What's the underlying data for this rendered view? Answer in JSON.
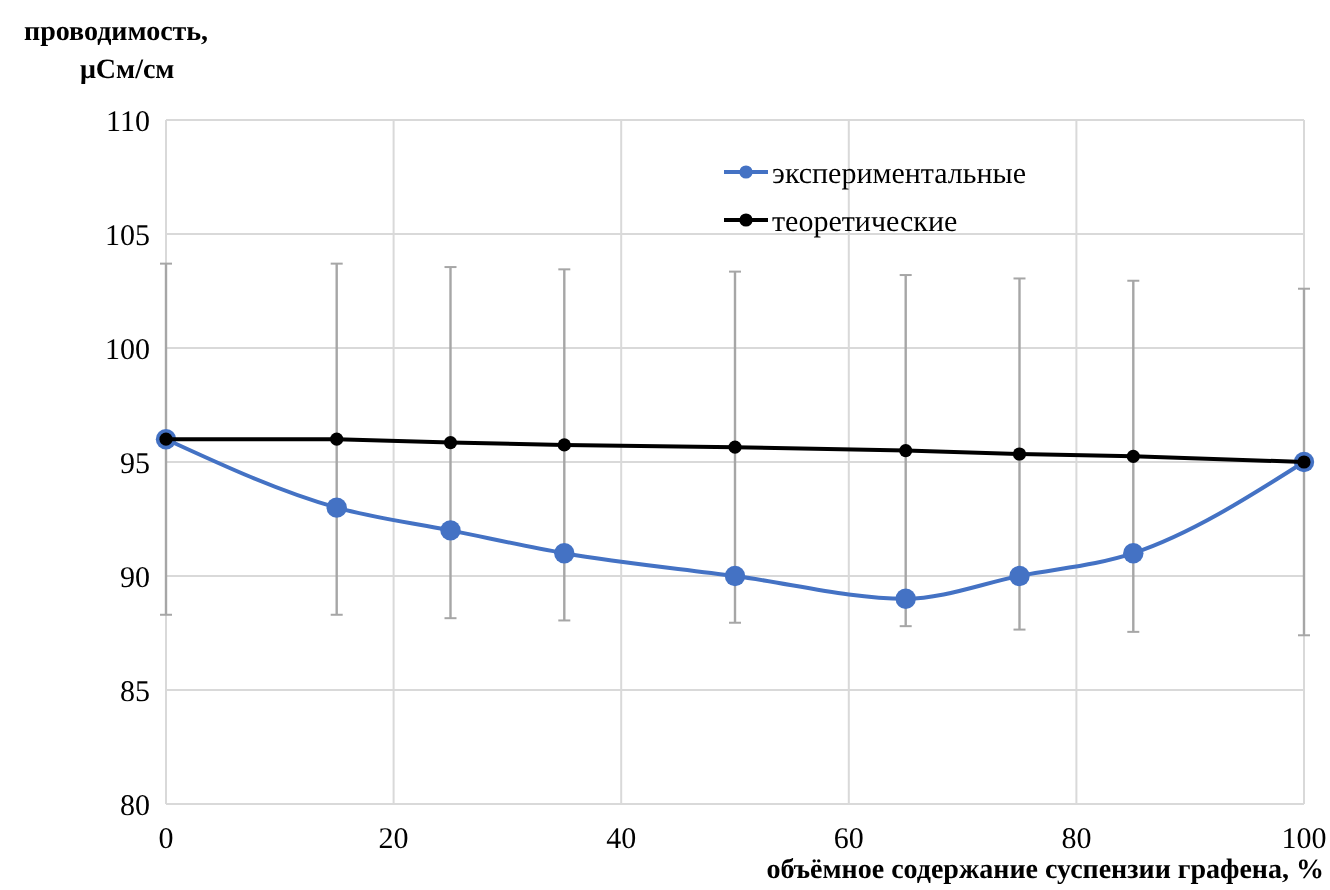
{
  "chart_data": {
    "type": "line",
    "ylabel": "проводимость, μСм/см",
    "xlabel": "объёмное содержание суспензии графена, %",
    "x": [
      0,
      15,
      25,
      35,
      50,
      65,
      75,
      85,
      100
    ],
    "xlim": [
      0,
      100
    ],
    "xticks": [
      0,
      20,
      40,
      60,
      80,
      100
    ],
    "ylim": [
      80,
      110
    ],
    "yticks": [
      80,
      85,
      90,
      95,
      100,
      105,
      110
    ],
    "grid": true,
    "legend": "top right",
    "marker": "circle",
    "line_style": "solid",
    "series": [
      {
        "name": "экспериментальные",
        "color": "#4472c4",
        "values": [
          96,
          93,
          92,
          91,
          90,
          89,
          90,
          91,
          95
        ]
      },
      {
        "name": "теоретические",
        "color": "#000000",
        "values": [
          96,
          96,
          95.85,
          95.75,
          95.65,
          95.5,
          95.35,
          95.25,
          95.0
        ],
        "errors": [
          7.7,
          7.7,
          7.7,
          7.7,
          7.7,
          7.7,
          7.7,
          7.7,
          7.6
        ]
      }
    ]
  }
}
